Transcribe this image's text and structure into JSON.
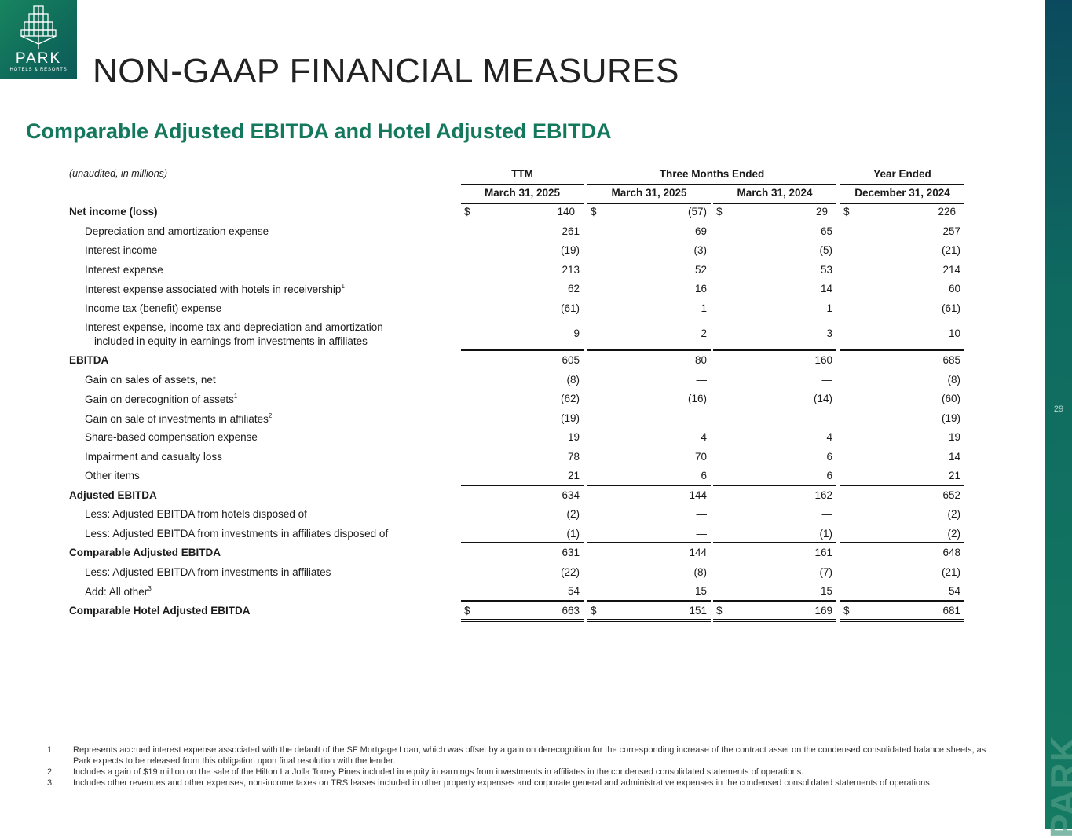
{
  "logo": {
    "brand": "PARK",
    "tagline": "HOTELS & RESORTS"
  },
  "page_number": "29",
  "watermark": "PARK",
  "title": "NON-GAAP FINANCIAL MEASURES",
  "subtitle": "Comparable Adjusted EBITDA and Hotel Adjusted EBITDA",
  "table": {
    "unit_note": "(unaudited, in millions)",
    "groups": [
      "TTM",
      "Three Months Ended",
      "Year Ended"
    ],
    "columns": [
      "March 31, 2025",
      "March 31, 2025",
      "March 31, 2024",
      "December 31, 2024"
    ],
    "currency": "$",
    "rows": [
      {
        "label": "Net income (loss)",
        "values": [
          "140",
          "(57)",
          "29",
          "226"
        ]
      },
      {
        "label": "Depreciation and amortization expense",
        "values": [
          "261",
          "69",
          "65",
          "257"
        ]
      },
      {
        "label": "Interest income",
        "values": [
          "(19)",
          "(3)",
          "(5)",
          "(21)"
        ]
      },
      {
        "label": "Interest expense",
        "values": [
          "213",
          "52",
          "53",
          "214"
        ]
      },
      {
        "label": "Interest expense associated with hotels in receivership",
        "sup": "1",
        "values": [
          "62",
          "16",
          "14",
          "60"
        ]
      },
      {
        "label": "Income tax (benefit) expense",
        "values": [
          "(61)",
          "1",
          "1",
          "(61)"
        ]
      },
      {
        "label": "Interest expense, income tax and depreciation and amortization",
        "label2": "included in equity in earnings from investments in affiliates",
        "values": [
          "9",
          "2",
          "3",
          "10"
        ]
      },
      {
        "label": "EBITDA",
        "values": [
          "605",
          "80",
          "160",
          "685"
        ]
      },
      {
        "label": "Gain on sales of assets, net",
        "values": [
          "(8)",
          "—",
          "—",
          "(8)"
        ]
      },
      {
        "label": "Gain on derecognition of assets",
        "sup": "1",
        "values": [
          "(62)",
          "(16)",
          "(14)",
          "(60)"
        ]
      },
      {
        "label": "Gain on sale of investments in affiliates",
        "sup": "2",
        "values": [
          "(19)",
          "—",
          "—",
          "(19)"
        ]
      },
      {
        "label": "Share-based compensation expense",
        "values": [
          "19",
          "4",
          "4",
          "19"
        ]
      },
      {
        "label": "Impairment and casualty loss",
        "values": [
          "78",
          "70",
          "6",
          "14"
        ]
      },
      {
        "label": "Other items",
        "values": [
          "21",
          "6",
          "6",
          "21"
        ]
      },
      {
        "label": "Adjusted EBITDA",
        "values": [
          "634",
          "144",
          "162",
          "652"
        ]
      },
      {
        "label": "Less: Adjusted EBITDA from hotels disposed of",
        "values": [
          "(2)",
          "—",
          "—",
          "(2)"
        ]
      },
      {
        "label": "Less: Adjusted EBITDA from investments in affiliates disposed of",
        "values": [
          "(1)",
          "—",
          "(1)",
          "(2)"
        ]
      },
      {
        "label": "Comparable Adjusted EBITDA",
        "values": [
          "631",
          "144",
          "161",
          "648"
        ]
      },
      {
        "label": "Less: Adjusted EBITDA from investments in affiliates",
        "values": [
          "(22)",
          "(8)",
          "(7)",
          "(21)"
        ]
      },
      {
        "label": "Add: All other",
        "sup": "3",
        "values": [
          "54",
          "15",
          "15",
          "54"
        ]
      },
      {
        "label": "Comparable Hotel Adjusted EBITDA",
        "values": [
          "663",
          "151",
          "169",
          "681"
        ]
      }
    ]
  },
  "footnotes": [
    {
      "n": "1.",
      "text": "Represents accrued interest expense associated with the default of the SF Mortgage Loan, which was offset by a gain on derecognition for the corresponding increase of the contract asset on the condensed consolidated balance sheets, as Park expects to be released from this obligation upon final resolution with the lender."
    },
    {
      "n": "2.",
      "text": "Includes a gain of $19 million on the sale of the Hilton La Jolla Torrey Pines included in equity in earnings from investments in affiliates in the condensed consolidated statements of operations."
    },
    {
      "n": "3.",
      "text": "Includes other revenues and other expenses, non-income taxes on TRS leases included in other property expenses and corporate general and administrative expenses in the condensed consolidated statements of operations."
    }
  ]
}
